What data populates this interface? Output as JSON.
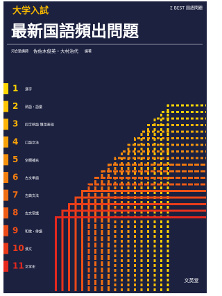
{
  "header": {
    "series": "大学入試",
    "title": "最新国語頻出問題",
    "brand": "Σ BEST 国語問題"
  },
  "authors": {
    "affiliation": "河合塾講師",
    "names": "佐佐木俊英・大村治代",
    "role": "編著"
  },
  "contents": [
    {
      "number": "1",
      "label": "漢字"
    },
    {
      "number": "2",
      "label": "熟語・語彙"
    },
    {
      "number": "3",
      "label": "四字熟語 慣用表現"
    },
    {
      "number": "4",
      "label": "口語文法"
    },
    {
      "number": "5",
      "label": "空欄補充"
    },
    {
      "number": "6",
      "label": "古文単語"
    },
    {
      "number": "7",
      "label": "古典文法"
    },
    {
      "number": "8",
      "label": "古文常識"
    },
    {
      "number": "9",
      "label": "和歌・俳諧"
    },
    {
      "number": "10",
      "label": "漢文"
    },
    {
      "number": "11",
      "label": "文学史"
    }
  ],
  "publisher": "文英堂"
}
